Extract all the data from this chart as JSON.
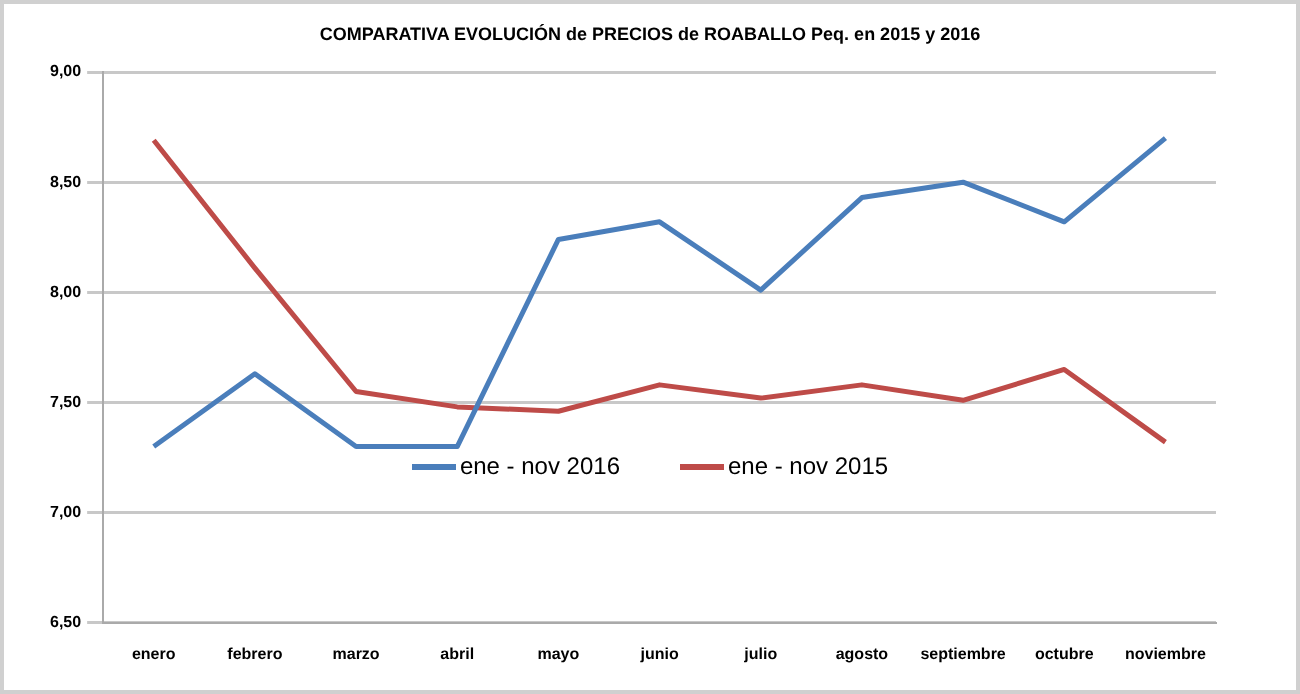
{
  "chart_data": {
    "type": "line",
    "title": "COMPARATIVA EVOLUCIÓN de PRECIOS de ROABALLO Peq. en 2015 y 2016",
    "categories": [
      "enero",
      "febrero",
      "marzo",
      "abril",
      "mayo",
      "junio",
      "julio",
      "agosto",
      "septiembre",
      "octubre",
      "noviembre"
    ],
    "series": [
      {
        "name": "ene - nov 2016",
        "color": "#4a7ebb",
        "values": [
          7.3,
          7.63,
          7.3,
          7.3,
          8.24,
          8.32,
          8.01,
          8.43,
          8.5,
          8.32,
          8.7
        ]
      },
      {
        "name": "ene - nov 2015",
        "color": "#be4b48",
        "values": [
          8.69,
          8.11,
          7.55,
          7.48,
          7.46,
          7.58,
          7.52,
          7.58,
          7.51,
          7.65,
          7.32
        ]
      }
    ],
    "ylim": [
      6.5,
      9
    ],
    "yticks": [
      {
        "value": 6.5,
        "label": "6,50"
      },
      {
        "value": 7,
        "label": "7,00"
      },
      {
        "value": 7.5,
        "label": "7,50"
      },
      {
        "value": 8,
        "label": "8,00"
      },
      {
        "value": 8.5,
        "label": "8,50"
      },
      {
        "value": 9,
        "label": "9,00"
      }
    ],
    "grid": "y",
    "legend": "center",
    "marker": "none",
    "line_style": "solid"
  }
}
